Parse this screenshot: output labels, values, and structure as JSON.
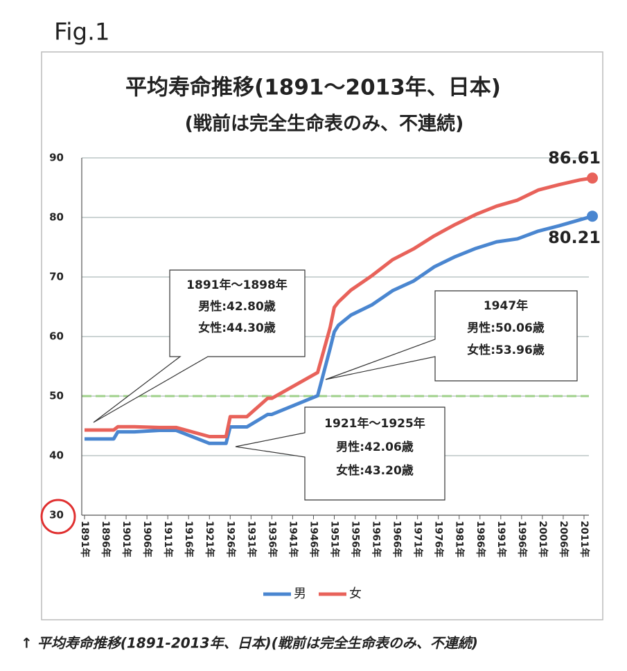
{
  "figure_label": "Fig.1",
  "caption": "↑ 平均寿命推移(1891-2013年、日本)(戦前は完全生命表のみ、不連続)",
  "chart_data": {
    "type": "line",
    "title": "平均寿命推移(1891～2013年、日本)",
    "subtitle": "(戦前は完全生命表のみ、不連続)",
    "x": [
      1891,
      1898,
      1899,
      1903,
      1909,
      1913,
      1921,
      1925,
      1926,
      1930,
      1935,
      1936,
      1947,
      1950,
      1951,
      1952,
      1955,
      1960,
      1965,
      1970,
      1975,
      1980,
      1985,
      1990,
      1995,
      2000,
      2005,
      2010,
      2013
    ],
    "series": [
      {
        "name": "男",
        "color": "#4a86d0",
        "values": [
          42.8,
          42.8,
          44.0,
          44.0,
          44.25,
          44.25,
          42.06,
          42.06,
          44.82,
          44.82,
          46.92,
          46.92,
          50.06,
          58.0,
          60.8,
          61.9,
          63.6,
          65.3,
          67.7,
          69.3,
          71.7,
          73.4,
          74.8,
          75.9,
          76.4,
          77.7,
          78.6,
          79.6,
          80.21
        ]
      },
      {
        "name": "女",
        "color": "#e8625a",
        "values": [
          44.3,
          44.3,
          44.85,
          44.85,
          44.73,
          44.73,
          43.2,
          43.2,
          46.54,
          46.54,
          49.63,
          49.63,
          53.96,
          61.5,
          64.9,
          65.8,
          67.8,
          70.2,
          72.9,
          74.7,
          76.9,
          78.8,
          80.5,
          81.9,
          82.9,
          84.6,
          85.5,
          86.3,
          86.61
        ]
      }
    ],
    "xlim": [
      1891,
      2013
    ],
    "xticks": [
      {
        "value": 1891,
        "label": "1891年"
      },
      {
        "value": 1896,
        "label": "1896年"
      },
      {
        "value": 1901,
        "label": "1901年"
      },
      {
        "value": 1906,
        "label": "1906年"
      },
      {
        "value": 1911,
        "label": "1911年"
      },
      {
        "value": 1916,
        "label": "1916年"
      },
      {
        "value": 1921,
        "label": "1921年"
      },
      {
        "value": 1926,
        "label": "1926年"
      },
      {
        "value": 1931,
        "label": "1931年"
      },
      {
        "value": 1936,
        "label": "1936年"
      },
      {
        "value": 1941,
        "label": "1941年"
      },
      {
        "value": 1946,
        "label": "1946年"
      },
      {
        "value": 1951,
        "label": "1951年"
      },
      {
        "value": 1956,
        "label": "1956年"
      },
      {
        "value": 1961,
        "label": "1961年"
      },
      {
        "value": 1966,
        "label": "1966年"
      },
      {
        "value": 1971,
        "label": "1971年"
      },
      {
        "value": 1976,
        "label": "1976年"
      },
      {
        "value": 1981,
        "label": "1981年"
      },
      {
        "value": 1986,
        "label": "1986年"
      },
      {
        "value": 1991,
        "label": "1991年"
      },
      {
        "value": 1996,
        "label": "1996年"
      },
      {
        "value": 2001,
        "label": "2001年"
      },
      {
        "value": 2006,
        "label": "2006年"
      },
      {
        "value": 2011,
        "label": "2011年"
      }
    ],
    "ylim": [
      30,
      90
    ],
    "yticks": [
      30,
      40,
      50,
      60,
      70,
      80,
      90
    ],
    "grid": true,
    "reference_line": {
      "value": 50,
      "color": "#9fd08a"
    },
    "legend": "bottom",
    "annotations": [
      {
        "lines": [
          "1891年～1898年",
          "男性:42.80歳",
          "女性:44.30歳"
        ]
      },
      {
        "lines": [
          "1947年",
          "男性:50.06歳",
          "女性:53.96歳"
        ]
      },
      {
        "lines": [
          "1921年～1925年",
          "男性:42.06歳",
          "女性:43.20歳"
        ]
      }
    ]
  }
}
